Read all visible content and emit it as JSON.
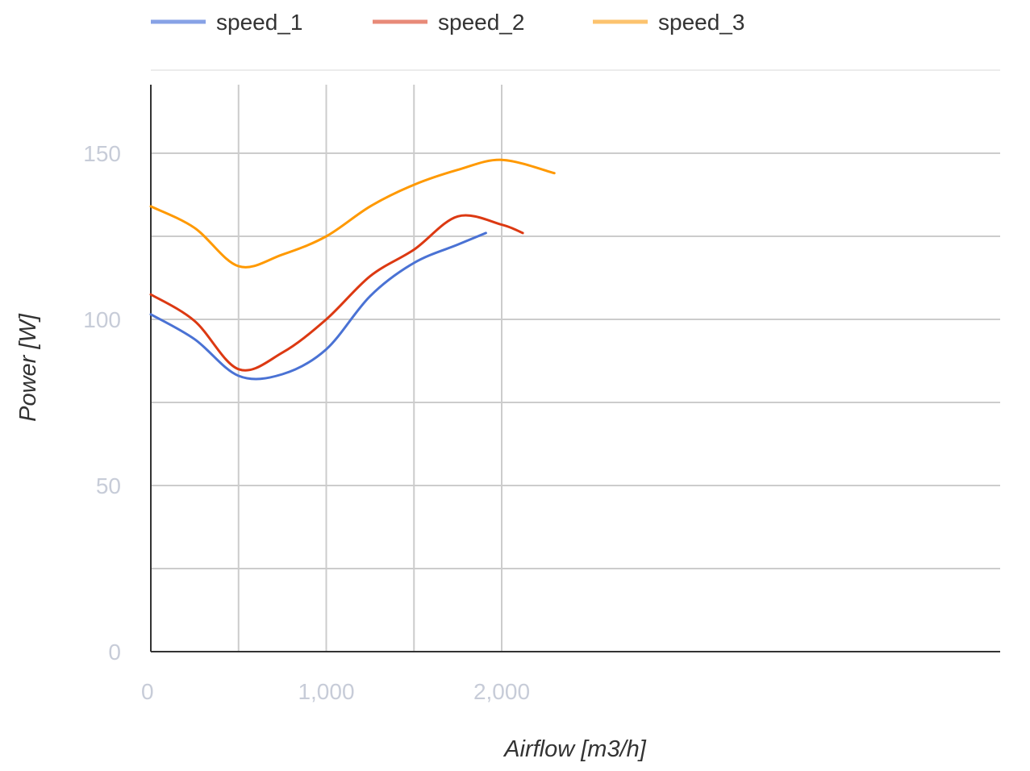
{
  "chart_data": {
    "type": "line",
    "xlabel": "Airflow [m3/h]",
    "ylabel": "Power [W]",
    "xlim": [
      0,
      2420
    ],
    "ylim": [
      0,
      170
    ],
    "x_ticks": [
      {
        "value": 0,
        "label": "0"
      },
      {
        "value": 1000,
        "label": "1,000"
      },
      {
        "value": 2000,
        "label": "2,000"
      }
    ],
    "y_ticks": [
      {
        "value": 0,
        "label": "0"
      },
      {
        "value": 50,
        "label": "50"
      },
      {
        "value": 100,
        "label": "100"
      },
      {
        "value": 150,
        "label": "150"
      }
    ],
    "x_gridlines": [
      0,
      500,
      1000,
      1500,
      2000
    ],
    "y_gridlines": [
      0,
      25,
      50,
      75,
      100,
      125,
      150
    ],
    "grid": true,
    "legend_position": "top-left",
    "series": [
      {
        "name": "speed_1",
        "color": "#4a72d4",
        "legend_color": "#87a2e6",
        "points": [
          [
            0,
            101.5
          ],
          [
            250,
            94
          ],
          [
            500,
            83
          ],
          [
            750,
            83.5
          ],
          [
            1000,
            91
          ],
          [
            1250,
            107
          ],
          [
            1500,
            117
          ],
          [
            1750,
            122.5
          ],
          [
            1910,
            126
          ]
        ]
      },
      {
        "name": "speed_2",
        "color": "#dc3912",
        "legend_color": "#e88a78",
        "points": [
          [
            0,
            107.5
          ],
          [
            250,
            99.5
          ],
          [
            500,
            85
          ],
          [
            750,
            90
          ],
          [
            1000,
            100
          ],
          [
            1250,
            113
          ],
          [
            1500,
            121
          ],
          [
            1750,
            131
          ],
          [
            2000,
            128.5
          ],
          [
            2120,
            126
          ]
        ]
      },
      {
        "name": "speed_3",
        "color": "#ff9900",
        "legend_color": "#fcc36e",
        "points": [
          [
            0,
            134
          ],
          [
            250,
            127.5
          ],
          [
            500,
            116
          ],
          [
            750,
            119.5
          ],
          [
            1000,
            125
          ],
          [
            1250,
            134
          ],
          [
            1500,
            140.5
          ],
          [
            1750,
            145
          ],
          [
            2000,
            148
          ],
          [
            2300,
            144
          ]
        ]
      }
    ]
  }
}
